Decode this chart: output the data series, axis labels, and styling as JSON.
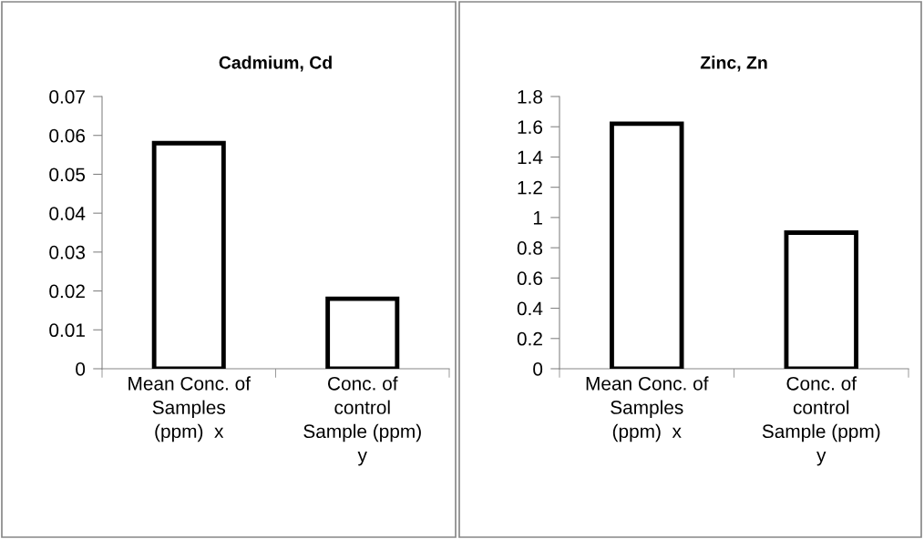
{
  "chart_data": [
    {
      "type": "bar",
      "title": "Cadmium, Cd",
      "categories": [
        "Mean Conc. of\nSamples\n(ppm)  x",
        "Conc. of\ncontrol\nSample (ppm)\ny"
      ],
      "values": [
        0.058,
        0.018
      ],
      "color": "#ffffff",
      "ylim": [
        0,
        0.07
      ],
      "yticks": [
        0,
        0.01,
        0.02,
        0.03,
        0.04,
        0.05,
        0.06,
        0.07
      ],
      "grid": false,
      "legend": false
    },
    {
      "type": "bar",
      "title": "Zinc, Zn",
      "categories": [
        "Mean Conc. of\nSamples\n(ppm)  x",
        "Conc. of\ncontrol\nSample (ppm)\ny"
      ],
      "values": [
        1.62,
        0.9
      ],
      "color": "#ffffff",
      "ylim": [
        0,
        1.8
      ],
      "yticks": [
        0,
        0.2,
        0.4,
        0.6,
        0.8,
        1,
        1.2,
        1.4,
        1.6,
        1.8
      ],
      "grid": false,
      "legend": false
    }
  ]
}
